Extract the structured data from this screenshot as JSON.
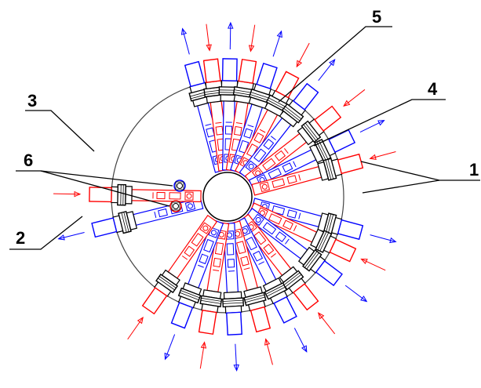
{
  "diagram": {
    "labels": [
      {
        "id": "1",
        "text": "1"
      },
      {
        "id": "2",
        "text": "2"
      },
      {
        "id": "3",
        "text": "3"
      },
      {
        "id": "4",
        "text": "4"
      },
      {
        "id": "5",
        "text": "5"
      },
      {
        "id": "6",
        "text": "6"
      }
    ],
    "spokes": [
      {
        "name": "spoke-n-1",
        "color": "blue"
      },
      {
        "name": "spoke-n-2",
        "color": "red"
      },
      {
        "name": "spoke-n-3",
        "color": "blue"
      },
      {
        "name": "spoke-n-4",
        "color": "red"
      },
      {
        "name": "spoke-n-5",
        "color": "blue"
      },
      {
        "name": "spoke-ne-1",
        "color": "red"
      },
      {
        "name": "spoke-ne-2",
        "color": "blue"
      },
      {
        "name": "spoke-e-1",
        "color": "red"
      },
      {
        "name": "spoke-e-2",
        "color": "blue"
      },
      {
        "name": "spoke-e-3",
        "color": "red"
      },
      {
        "name": "spoke-se-1",
        "color": "blue"
      },
      {
        "name": "spoke-se-2",
        "color": "red"
      },
      {
        "name": "spoke-se-3",
        "color": "blue"
      },
      {
        "name": "spoke-s-1",
        "color": "red"
      },
      {
        "name": "spoke-s-2",
        "color": "blue"
      },
      {
        "name": "spoke-s-3",
        "color": "red"
      },
      {
        "name": "spoke-s-4",
        "color": "blue"
      },
      {
        "name": "spoke-sw-1",
        "color": "red"
      },
      {
        "name": "spoke-sw-2",
        "color": "blue"
      },
      {
        "name": "spoke-w-1",
        "color": "red"
      },
      {
        "name": "spoke-w-2",
        "color": "blue"
      },
      {
        "name": "spoke-nw-1",
        "color": "red"
      }
    ],
    "colors": {
      "red": "#ff0000",
      "blue": "#0000ff",
      "black": "#000000",
      "ring": "#444444"
    }
  }
}
